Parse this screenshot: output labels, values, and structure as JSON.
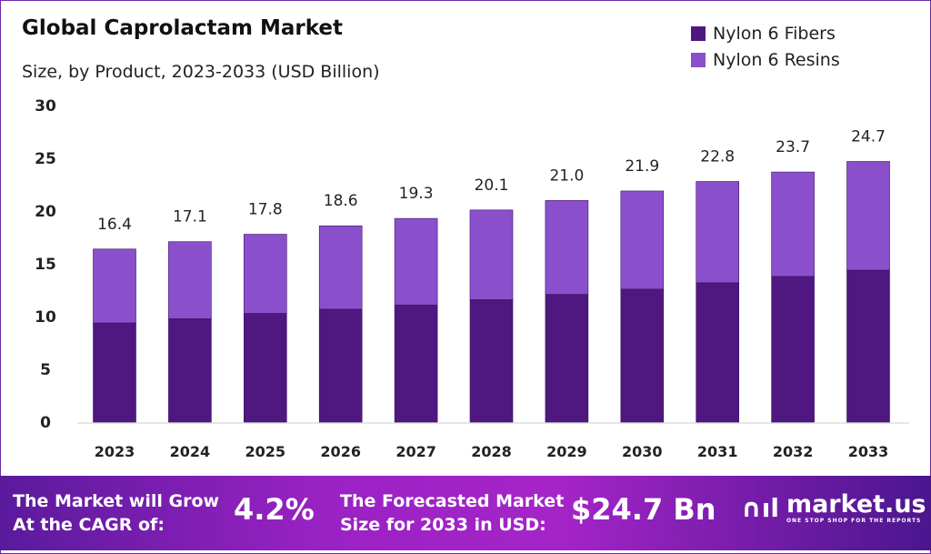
{
  "chart_data": {
    "type": "bar",
    "stacked": true,
    "title": "Global Caprolactam Market",
    "subtitle": "Size, by Product, 2023-2033 (USD Billion)",
    "categories": [
      "2023",
      "2024",
      "2025",
      "2026",
      "2027",
      "2028",
      "2029",
      "2030",
      "2031",
      "2032",
      "2033"
    ],
    "series": [
      {
        "name": "Nylon 6 Fibers",
        "color": "#4f1880",
        "values": [
          9.4,
          9.8,
          10.3,
          10.7,
          11.1,
          11.6,
          12.1,
          12.6,
          13.2,
          13.8,
          14.4
        ]
      },
      {
        "name": "Nylon 6 Resins",
        "color": "#8a50cc",
        "values": [
          7.0,
          7.3,
          7.5,
          7.9,
          8.2,
          8.5,
          8.9,
          9.3,
          9.6,
          9.9,
          10.3
        ]
      }
    ],
    "totals": [
      "16.4",
      "17.1",
      "17.8",
      "18.6",
      "19.3",
      "20.1",
      "21.0",
      "21.9",
      "22.8",
      "23.7",
      "24.7"
    ],
    "ylim": [
      0,
      30
    ],
    "yticks": [
      "0",
      "5",
      "10",
      "15",
      "20",
      "25",
      "30"
    ],
    "grid": false,
    "legend_position": "top-right"
  },
  "banner": {
    "cagr_label_1": "The Market will Grow",
    "cagr_label_2": "At the CAGR of:",
    "cagr_value": "4.2%",
    "forecast_label_1": "The Forecasted Market",
    "forecast_label_2": "Size for 2033 in USD:",
    "forecast_value": "$24.7 Bn",
    "logo_name": "market.us",
    "logo_tagline": "ONE STOP SHOP FOR THE REPORTS"
  }
}
